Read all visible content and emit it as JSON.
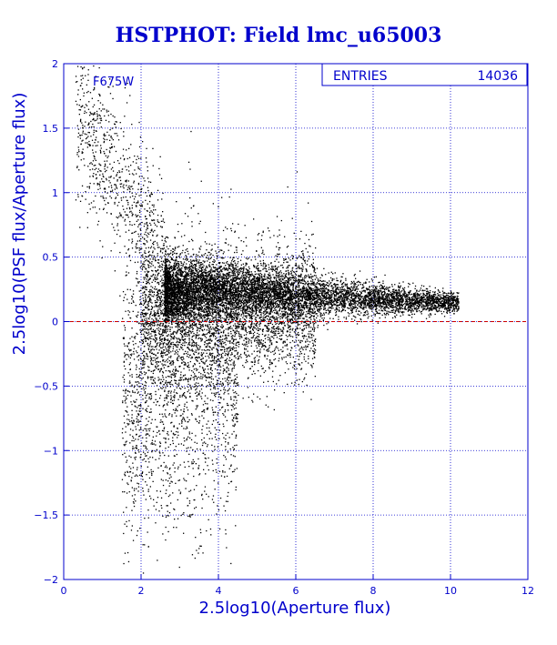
{
  "chart_data": {
    "type": "scatter",
    "title": "HSTPHOT: Field lmc_u65003",
    "xlabel": "2.5log10(Aperture flux)",
    "ylabel": "2.5log10(PSF flux/Aperture flux)",
    "xlim": [
      0,
      12
    ],
    "ylim": [
      -2,
      2
    ],
    "xticks": [
      0,
      2,
      4,
      6,
      8,
      10,
      12
    ],
    "yticks": [
      -2,
      -1.5,
      -1,
      -0.5,
      0,
      0.5,
      1,
      1.5,
      2
    ],
    "grid": true,
    "reference_line_y": 0,
    "annotation": "F675W",
    "stats_box": {
      "label": "ENTRIES",
      "value": "14036"
    },
    "n_points": 14036,
    "distribution_note": "points sampled to reproduce visible distribution",
    "clusters": [
      {
        "x_range": [
          2.6,
          10.2
        ],
        "y_center_start": 0.25,
        "y_center_end": 0.15,
        "spread": 0.09,
        "weight": 0.55
      },
      {
        "x_range": [
          2.0,
          6.5
        ],
        "y_center_start": 0.05,
        "y_center_end": 0.1,
        "spread": 0.25,
        "weight": 0.25
      },
      {
        "x_range": [
          0.3,
          2.6
        ],
        "y_center_start": 1.7,
        "y_center_end": 0.4,
        "spread": 0.3,
        "weight": 0.06
      },
      {
        "x_range": [
          1.5,
          4.5
        ],
        "y_center_start": -0.6,
        "y_center_end": -0.4,
        "spread": 0.55,
        "weight": 0.14
      }
    ],
    "colors": {
      "axes": "#0000cc",
      "grid": "#0000cc",
      "points": "#000000",
      "reference_line": "#cc0000",
      "title": "#0000cc"
    }
  }
}
